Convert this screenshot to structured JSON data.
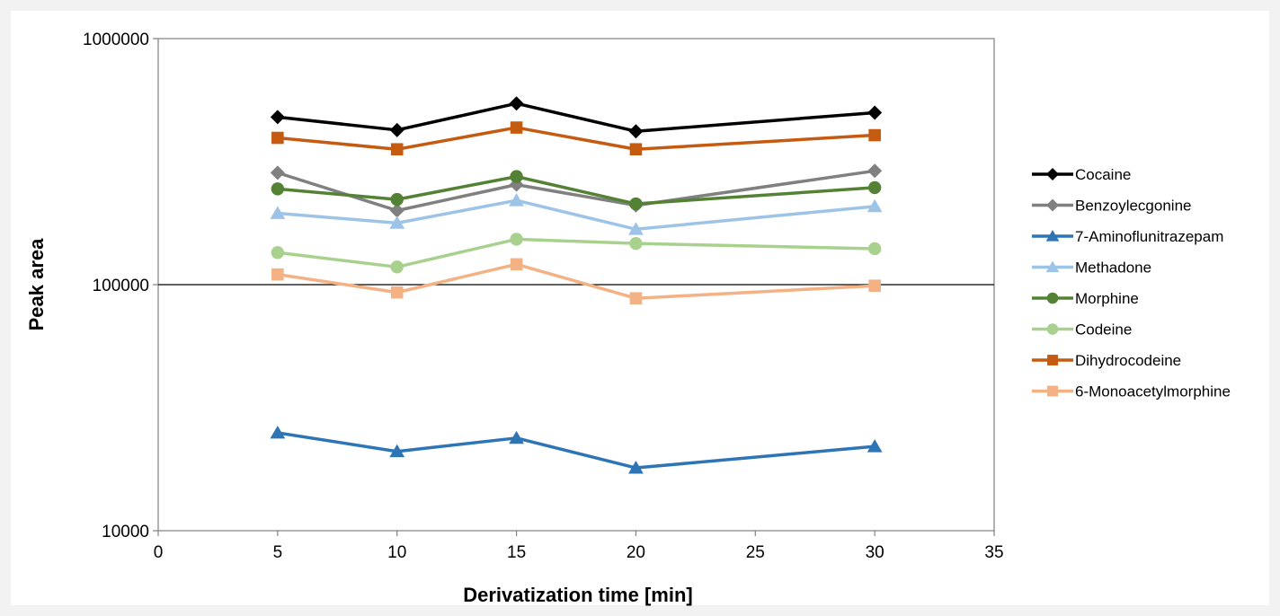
{
  "chart_data": {
    "type": "line",
    "title": "",
    "xlabel": "Derivatization time [min]",
    "ylabel": "Peak area",
    "xlim": [
      0,
      35
    ],
    "ylim": [
      10000,
      1000000
    ],
    "yscale": "log",
    "xticks": [
      0,
      5,
      10,
      15,
      20,
      25,
      30,
      35
    ],
    "yticks": [
      10000,
      100000,
      1000000
    ],
    "ytick_labels": [
      "10000",
      "100000",
      "1000000"
    ],
    "grid": "horizontal major lines at decades",
    "legend_position": "right",
    "x": [
      5,
      10,
      15,
      20,
      30
    ],
    "series": [
      {
        "name": "Cocaine",
        "color": "#000000",
        "marker": "diamond",
        "values": [
          480000,
          425000,
          545000,
          420000,
          500000
        ]
      },
      {
        "name": "Benzoylecgonine",
        "color": "#808080",
        "marker": "diamond",
        "values": [
          285000,
          200000,
          255000,
          210000,
          290000
        ]
      },
      {
        "name": "7-Aminoflunitrazepam",
        "color": "#2e75b6",
        "marker": "triangle",
        "values": [
          25000,
          21000,
          23800,
          18000,
          22000
        ]
      },
      {
        "name": "Methadone",
        "color": "#9dc3e6",
        "marker": "triangle",
        "values": [
          195000,
          178000,
          220000,
          168000,
          208000
        ]
      },
      {
        "name": "Morphine",
        "color": "#548235",
        "marker": "circle",
        "values": [
          245000,
          222000,
          275000,
          213000,
          248000
        ]
      },
      {
        "name": "Codeine",
        "color": "#a9d18e",
        "marker": "circle",
        "values": [
          135000,
          118000,
          153000,
          147000,
          140000
        ]
      },
      {
        "name": "Dihydrocodeine",
        "color": "#c55a11",
        "marker": "square",
        "values": [
          395000,
          355000,
          435000,
          355000,
          405000
        ]
      },
      {
        "name": "6-Monoacetylmorphine",
        "color": "#f4b183",
        "marker": "square",
        "values": [
          110000,
          93000,
          121000,
          88000,
          99000
        ]
      }
    ]
  }
}
